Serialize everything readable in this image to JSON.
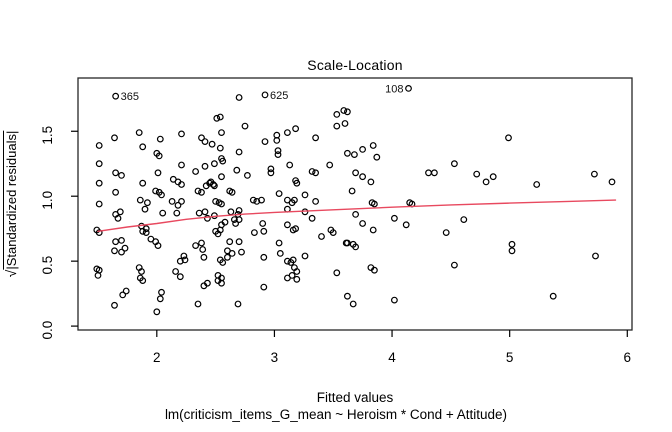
{
  "chart_data": {
    "type": "scatter",
    "title": "Scale-Location",
    "xlabel": "Fitted values",
    "caption": "lm(criticism_items_G_mean ~ Heroism * Cond + Attitude)",
    "ylabel_radical": "√",
    "ylabel_body": "|Standardized residuals|",
    "xlim": [
      1.33,
      6.04
    ],
    "ylim": [
      -0.03,
      1.91
    ],
    "x_ticks": [
      "2",
      "3",
      "4",
      "5",
      "6"
    ],
    "y_ticks": [
      "0.0",
      "0.5",
      "1.0",
      "1.5"
    ],
    "grid": false,
    "legend_position": "none",
    "point_color": "#000000",
    "smooth_line_color": "#e8495f",
    "frame_color": "#262626",
    "labeled_points": [
      {
        "label": "365",
        "x": 1.65,
        "y": 1.77,
        "side": "right"
      },
      {
        "label": "625",
        "x": 2.92,
        "y": 1.78,
        "side": "right"
      },
      {
        "label": "108",
        "x": 4.14,
        "y": 1.83,
        "side": "left"
      }
    ],
    "smooth_line": [
      [
        1.5,
        0.73
      ],
      [
        1.75,
        0.763
      ],
      [
        2.0,
        0.79
      ],
      [
        2.25,
        0.822
      ],
      [
        2.5,
        0.845
      ],
      [
        2.75,
        0.862
      ],
      [
        3.0,
        0.875
      ],
      [
        3.5,
        0.895
      ],
      [
        4.0,
        0.915
      ],
      [
        4.5,
        0.933
      ],
      [
        5.0,
        0.947
      ],
      [
        5.5,
        0.96
      ],
      [
        5.9,
        0.97
      ]
    ],
    "points": [
      [
        1.64,
        1.45
      ],
      [
        1.85,
        1.49
      ],
      [
        1.51,
        1.39
      ],
      [
        2.03,
        1.44
      ],
      [
        2.21,
        1.48
      ],
      [
        1.88,
        1.38
      ],
      [
        2.38,
        1.45
      ],
      [
        2.41,
        1.42
      ],
      [
        2.51,
        1.6
      ],
      [
        2.0,
        1.33
      ],
      [
        2.02,
        1.31
      ],
      [
        1.51,
        1.25
      ],
      [
        1.65,
        1.18
      ],
      [
        1.7,
        1.16
      ],
      [
        2.01,
        1.18
      ],
      [
        2.21,
        1.24
      ],
      [
        2.33,
        1.19
      ],
      [
        2.41,
        1.23
      ],
      [
        2.49,
        1.25
      ],
      [
        1.51,
        1.1
      ],
      [
        1.65,
        1.03
      ],
      [
        1.88,
        1.1
      ],
      [
        1.99,
        1.04
      ],
      [
        2.02,
        1.03
      ],
      [
        2.04,
        1.01
      ],
      [
        2.14,
        1.13
      ],
      [
        2.18,
        1.11
      ],
      [
        2.21,
        1.09
      ],
      [
        2.35,
        1.04
      ],
      [
        2.38,
        1.03
      ],
      [
        2.42,
        1.08
      ],
      [
        2.45,
        1.1
      ],
      [
        1.86,
        0.97
      ],
      [
        2.13,
        0.96
      ],
      [
        2.49,
        1.08
      ],
      [
        2.7,
        1.76
      ],
      [
        2.54,
        1.61
      ],
      [
        2.75,
        1.54
      ],
      [
        2.55,
        1.49
      ],
      [
        3.53,
        1.63
      ],
      [
        3.59,
        1.66
      ],
      [
        3.53,
        1.54
      ],
      [
        3.6,
        1.56
      ],
      [
        3.02,
        1.47
      ],
      [
        3.02,
        1.43
      ],
      [
        3.11,
        1.49
      ],
      [
        3.18,
        1.52
      ],
      [
        2.92,
        1.42
      ],
      [
        3.35,
        1.45
      ],
      [
        2.47,
        1.4
      ],
      [
        2.54,
        1.37
      ],
      [
        2.7,
        1.34
      ],
      [
        3.03,
        1.35
      ],
      [
        3.03,
        1.32
      ],
      [
        2.55,
        1.29
      ],
      [
        2.56,
        1.27
      ],
      [
        2.68,
        1.2
      ],
      [
        2.77,
        1.16
      ],
      [
        2.97,
        1.21
      ],
      [
        2.97,
        1.18
      ],
      [
        3.13,
        1.24
      ],
      [
        3.32,
        1.19
      ],
      [
        3.35,
        1.18
      ],
      [
        3.47,
        1.24
      ],
      [
        2.46,
        1.11
      ],
      [
        2.48,
        1.09
      ],
      [
        2.55,
        1.15
      ],
      [
        2.62,
        1.04
      ],
      [
        2.64,
        1.03
      ],
      [
        2.82,
        0.97
      ],
      [
        2.85,
        0.96
      ],
      [
        2.89,
        0.97
      ],
      [
        3.04,
        1.02
      ],
      [
        3.18,
        1.12
      ],
      [
        3.19,
        1.1
      ],
      [
        3.26,
        1.01
      ],
      [
        3.11,
        0.97
      ],
      [
        3.15,
        0.95
      ],
      [
        3.35,
        0.96
      ],
      [
        3.62,
        1.65
      ],
      [
        3.84,
        1.39
      ],
      [
        3.75,
        1.36
      ],
      [
        3.62,
        1.33
      ],
      [
        3.68,
        1.32
      ],
      [
        3.87,
        1.3
      ],
      [
        3.69,
        1.18
      ],
      [
        3.75,
        1.15
      ],
      [
        3.82,
        1.11
      ],
      [
        3.66,
        1.04
      ],
      [
        4.31,
        1.18
      ],
      [
        4.36,
        1.18
      ],
      [
        4.53,
        1.25
      ],
      [
        4.72,
        1.17
      ],
      [
        4.99,
        1.45
      ],
      [
        4.86,
        1.15
      ],
      [
        4.8,
        1.11
      ],
      [
        5.23,
        1.09
      ],
      [
        5.72,
        1.17
      ],
      [
        5.87,
        1.11
      ],
      [
        1.51,
        0.94
      ],
      [
        1.92,
        0.95
      ],
      [
        1.9,
        0.9
      ],
      [
        2.18,
        0.93
      ],
      [
        2.21,
        0.96
      ],
      [
        1.65,
        0.86
      ],
      [
        1.69,
        0.88
      ],
      [
        1.67,
        0.83
      ],
      [
        1.49,
        0.74
      ],
      [
        1.51,
        0.72
      ],
      [
        1.87,
        0.77
      ],
      [
        1.91,
        0.75
      ],
      [
        1.88,
        0.73
      ],
      [
        1.91,
        0.72
      ],
      [
        2.05,
        0.87
      ],
      [
        2.17,
        0.87
      ],
      [
        2.36,
        0.87
      ],
      [
        2.41,
        0.88
      ],
      [
        2.43,
        0.83
      ],
      [
        2.49,
        0.85
      ],
      [
        1.95,
        0.67
      ],
      [
        1.99,
        0.65
      ],
      [
        2.01,
        0.62
      ],
      [
        1.65,
        0.65
      ],
      [
        1.7,
        0.66
      ],
      [
        1.64,
        0.58
      ],
      [
        1.7,
        0.57
      ],
      [
        1.73,
        0.6
      ],
      [
        2.23,
        0.54
      ],
      [
        2.33,
        0.62
      ],
      [
        2.38,
        0.64
      ],
      [
        2.39,
        0.59
      ],
      [
        2.2,
        0.5
      ],
      [
        2.24,
        0.51
      ],
      [
        2.4,
        0.53
      ],
      [
        1.49,
        0.44
      ],
      [
        1.51,
        0.43
      ],
      [
        1.5,
        0.39
      ],
      [
        1.85,
        0.45
      ],
      [
        1.87,
        0.42
      ],
      [
        1.86,
        0.37
      ],
      [
        1.88,
        0.35
      ],
      [
        2.16,
        0.42
      ],
      [
        2.2,
        0.38
      ],
      [
        2.4,
        0.31
      ],
      [
        2.43,
        0.33
      ],
      [
        1.71,
        0.24
      ],
      [
        1.74,
        0.27
      ],
      [
        1.64,
        0.16
      ],
      [
        2.04,
        0.26
      ],
      [
        2.03,
        0.21
      ],
      [
        2.35,
        0.17
      ],
      [
        2.0,
        0.11
      ],
      [
        2.5,
        0.96
      ],
      [
        2.53,
        0.95
      ],
      [
        2.55,
        0.94
      ],
      [
        3.17,
        0.97
      ],
      [
        2.63,
        0.88
      ],
      [
        2.69,
        0.86
      ],
      [
        2.7,
        0.89
      ],
      [
        2.66,
        0.82
      ],
      [
        2.7,
        0.82
      ],
      [
        2.67,
        0.79
      ],
      [
        2.55,
        0.78
      ],
      [
        2.58,
        0.8
      ],
      [
        2.5,
        0.73
      ],
      [
        2.54,
        0.74
      ],
      [
        2.52,
        0.71
      ],
      [
        2.9,
        0.79
      ],
      [
        2.83,
        0.72
      ],
      [
        2.91,
        0.73
      ],
      [
        3.11,
        0.78
      ],
      [
        3.16,
        0.74
      ],
      [
        3.18,
        0.75
      ],
      [
        3.11,
        0.9
      ],
      [
        3.26,
        0.88
      ],
      [
        3.32,
        0.83
      ],
      [
        3.4,
        0.69
      ],
      [
        3.48,
        0.74
      ],
      [
        3.5,
        0.72
      ],
      [
        3.61,
        0.64
      ],
      [
        2.62,
        0.65
      ],
      [
        2.7,
        0.65
      ],
      [
        2.6,
        0.58
      ],
      [
        2.64,
        0.56
      ],
      [
        2.72,
        0.57
      ],
      [
        2.54,
        0.51
      ],
      [
        2.56,
        0.49
      ],
      [
        2.6,
        0.53
      ],
      [
        2.91,
        0.53
      ],
      [
        3.04,
        0.64
      ],
      [
        3.05,
        0.56
      ],
      [
        3.11,
        0.5
      ],
      [
        3.14,
        0.49
      ],
      [
        3.16,
        0.51
      ],
      [
        3.26,
        0.54
      ],
      [
        3.17,
        0.45
      ],
      [
        3.19,
        0.42
      ],
      [
        3.11,
        0.37
      ],
      [
        3.15,
        0.39
      ],
      [
        3.19,
        0.36
      ],
      [
        3.53,
        0.41
      ],
      [
        2.52,
        0.39
      ],
      [
        2.55,
        0.37
      ],
      [
        2.52,
        0.35
      ],
      [
        2.55,
        0.33
      ],
      [
        2.91,
        0.3
      ],
      [
        2.69,
        0.17
      ],
      [
        3.83,
        0.95
      ],
      [
        3.85,
        0.94
      ],
      [
        4.15,
        0.95
      ],
      [
        4.17,
        0.94
      ],
      [
        3.69,
        0.86
      ],
      [
        3.75,
        0.79
      ],
      [
        3.84,
        0.74
      ],
      [
        4.02,
        0.83
      ],
      [
        4.12,
        0.78
      ],
      [
        3.62,
        0.64
      ],
      [
        3.67,
        0.63
      ],
      [
        3.69,
        0.61
      ],
      [
        3.82,
        0.45
      ],
      [
        3.85,
        0.43
      ],
      [
        4.46,
        0.72
      ],
      [
        4.61,
        0.82
      ],
      [
        4.53,
        0.47
      ],
      [
        3.62,
        0.23
      ],
      [
        3.67,
        0.17
      ],
      [
        4.02,
        0.2
      ],
      [
        5.02,
        0.63
      ],
      [
        5.02,
        0.58
      ],
      [
        5.73,
        0.54
      ],
      [
        5.37,
        0.23
      ]
    ]
  }
}
